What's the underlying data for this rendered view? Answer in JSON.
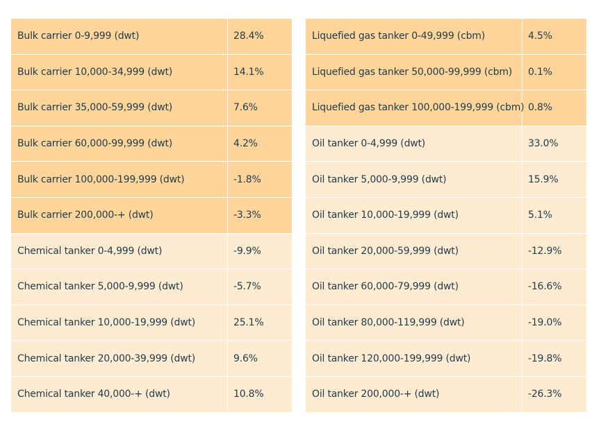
{
  "colors": {
    "dark_row": "#fdd59a",
    "light_row": "#fdebd2",
    "text": "#1f3a4a"
  },
  "left_table": {
    "rows": [
      {
        "label": "Bulk carrier 0-9,999 (dwt)",
        "value": "28.4%",
        "shade": "dark"
      },
      {
        "label": "Bulk carrier 10,000-34,999 (dwt)",
        "value": "14.1%",
        "shade": "dark"
      },
      {
        "label": "Bulk carrier 35,000-59,999 (dwt)",
        "value": "7.6%",
        "shade": "dark"
      },
      {
        "label": "Bulk carrier 60,000-99,999 (dwt)",
        "value": "4.2%",
        "shade": "dark"
      },
      {
        "label": "Bulk carrier 100,000-199,999 (dwt)",
        "value": "-1.8%",
        "shade": "dark"
      },
      {
        "label": "Bulk carrier 200,000-+ (dwt)",
        "value": "-3.3%",
        "shade": "dark"
      },
      {
        "label": "Chemical tanker 0-4,999 (dwt)",
        "value": "-9.9%",
        "shade": "light"
      },
      {
        "label": "Chemical tanker 5,000-9,999 (dwt)",
        "value": "-5.7%",
        "shade": "light"
      },
      {
        "label": "Chemical tanker 10,000-19,999 (dwt)",
        "value": "25.1%",
        "shade": "light"
      },
      {
        "label": "Chemical tanker 20,000-39,999 (dwt)",
        "value": "9.6%",
        "shade": "light"
      },
      {
        "label": "Chemical tanker 40,000-+ (dwt)",
        "value": "10.8%",
        "shade": "light"
      }
    ]
  },
  "right_table": {
    "rows": [
      {
        "label": "Liquefied gas tanker 0-49,999 (cbm)",
        "value": "4.5%",
        "shade": "dark"
      },
      {
        "label": "Liquefied gas tanker 50,000-99,999 (cbm)",
        "value": "0.1%",
        "shade": "dark"
      },
      {
        "label": "Liquefied gas tanker 100,000-199,999 (cbm)",
        "value": "0.8%",
        "shade": "dark"
      },
      {
        "label": "Oil tanker 0-4,999 (dwt)",
        "value": "33.0%",
        "shade": "light"
      },
      {
        "label": "Oil tanker 5,000-9,999 (dwt)",
        "value": "15.9%",
        "shade": "light"
      },
      {
        "label": "Oil tanker 10,000-19,999 (dwt)",
        "value": "5.1%",
        "shade": "light"
      },
      {
        "label": "Oil tanker 20,000-59,999 (dwt)",
        "value": "-12.9%",
        "shade": "light"
      },
      {
        "label": "Oil tanker 60,000-79,999 (dwt)",
        "value": "-16.6%",
        "shade": "light"
      },
      {
        "label": "Oil tanker 80,000-119,999 (dwt)",
        "value": "-19.0%",
        "shade": "light"
      },
      {
        "label": "Oil tanker 120,000-199,999 (dwt)",
        "value": "-19.8%",
        "shade": "light"
      },
      {
        "label": "Oil tanker 200,000-+ (dwt)",
        "value": "-26.3%",
        "shade": "light"
      }
    ]
  }
}
